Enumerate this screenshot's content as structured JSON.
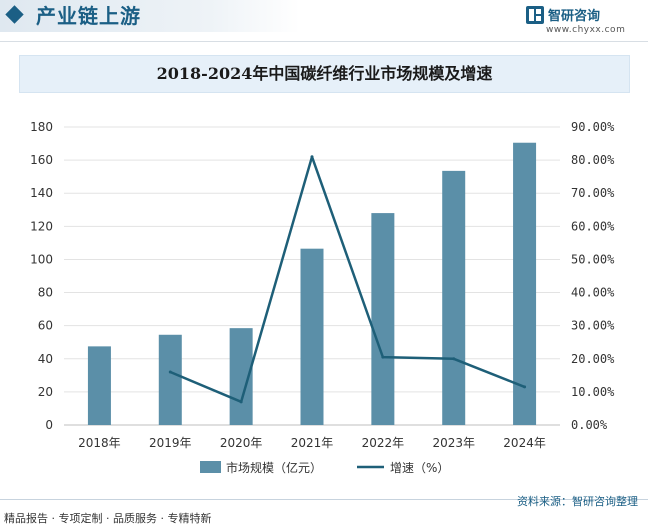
{
  "header": {
    "section_title": "产业链上游",
    "brand_name": "智研咨询",
    "brand_url": "www.chyxx.com"
  },
  "chart_data": {
    "type": "bar",
    "title": "2018-2024年中国碳纤维行业市场规模及增速",
    "categories": [
      "2018年",
      "2019年",
      "2020年",
      "2021年",
      "2022年",
      "2023年",
      "2024年"
    ],
    "series": [
      {
        "name": "市场规模（亿元）",
        "type": "bar",
        "axis": "left",
        "color": "#5b8fa8",
        "values": [
          47.5,
          54.5,
          58.5,
          106.5,
          128,
          153.5,
          170.5
        ]
      },
      {
        "name": "增速（%）",
        "type": "line",
        "axis": "right",
        "color": "#1e5f78",
        "values": [
          null,
          16.0,
          7.0,
          81.0,
          20.5,
          20.0,
          11.5
        ]
      }
    ],
    "y_left": {
      "ylim": [
        0,
        180
      ],
      "ticks": [
        "0",
        "20",
        "40",
        "60",
        "80",
        "100",
        "120",
        "140",
        "160",
        "180"
      ]
    },
    "y_right": {
      "ylim": [
        0,
        90
      ],
      "ticks": [
        "0.00%",
        "10.00%",
        "20.00%",
        "30.00%",
        "40.00%",
        "50.00%",
        "60.00%",
        "70.00%",
        "80.00%",
        "90.00%"
      ]
    },
    "grid": true,
    "legend_position": "bottom"
  },
  "footer": {
    "source": "资料来源：智研咨询整理",
    "services": "精品报告 · 专项定制 · 品质服务 · 专精特新"
  }
}
